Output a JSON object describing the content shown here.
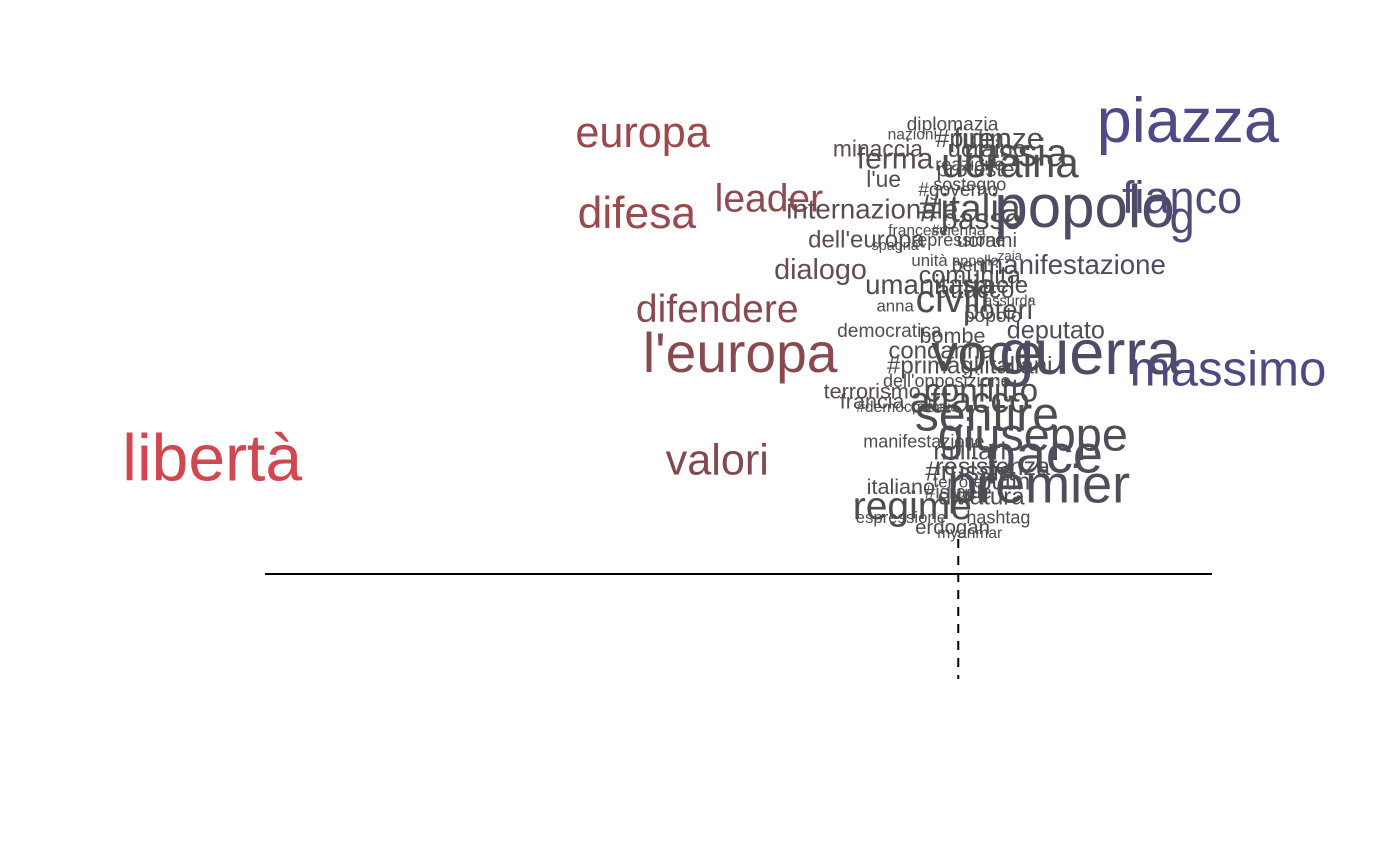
{
  "chart_data": {
    "type": "scatter",
    "title": "",
    "xlabel": "",
    "ylabel": "",
    "xlim": [
      -1.6,
      0.7
    ],
    "ylim": [
      -0.25,
      1.0
    ],
    "grid": false,
    "reference_lines": {
      "horizontal": 0,
      "vertical_dashed": 0
    },
    "color_scale": {
      "low": "#d1464f",
      "mid": "#4d4d4d",
      "high": "#4c4b85"
    },
    "words": [
      {
        "text": "libertà",
        "x": -1.3,
        "y": 0.22,
        "weight": 1.0,
        "c": -1.0
      },
      {
        "text": "europa",
        "x": -0.55,
        "y": 0.87,
        "weight": 0.62,
        "c": -0.6
      },
      {
        "text": "difesa",
        "x": -0.56,
        "y": 0.71,
        "weight": 0.64,
        "c": -0.6
      },
      {
        "text": "leader",
        "x": -0.33,
        "y": 0.74,
        "weight": 0.55,
        "c": -0.5
      },
      {
        "text": "difendere",
        "x": -0.42,
        "y": 0.52,
        "weight": 0.55,
        "c": -0.45
      },
      {
        "text": "l'europa",
        "x": -0.38,
        "y": 0.43,
        "weight": 0.82,
        "c": -0.45
      },
      {
        "text": "valori",
        "x": -0.42,
        "y": 0.22,
        "weight": 0.62,
        "c": -0.4
      },
      {
        "text": "dialogo",
        "x": -0.24,
        "y": 0.6,
        "weight": 0.38,
        "c": -0.2
      },
      {
        "text": "internazionale",
        "x": -0.15,
        "y": 0.72,
        "weight": 0.36,
        "c": -0.1
      },
      {
        "text": "dell'europa",
        "x": -0.16,
        "y": 0.66,
        "weight": 0.3,
        "c": -0.1
      },
      {
        "text": "minaccia",
        "x": -0.14,
        "y": 0.84,
        "weight": 0.28,
        "c": -0.1
      },
      {
        "text": "ferma",
        "x": -0.11,
        "y": 0.82,
        "weight": 0.4,
        "c": -0.1
      },
      {
        "text": "l'ue",
        "x": -0.13,
        "y": 0.78,
        "weight": 0.28,
        "c": -0.05
      },
      {
        "text": "diplomazia",
        "x": -0.01,
        "y": 0.89,
        "weight": 0.22,
        "c": 0.0
      },
      {
        "text": "#putin",
        "x": 0.02,
        "y": 0.86,
        "weight": 0.32,
        "c": 0.0
      },
      {
        "text": "firenze",
        "x": 0.07,
        "y": 0.86,
        "weight": 0.4,
        "c": 0.05
      },
      {
        "text": "ucraino",
        "x": 0.05,
        "y": 0.84,
        "weight": 0.3,
        "c": 0.0
      },
      {
        "text": "russia",
        "x": 0.1,
        "y": 0.83,
        "weight": 0.55,
        "c": 0.05
      },
      {
        "text": "ucraina",
        "x": 0.09,
        "y": 0.81,
        "weight": 0.6,
        "c": 0.05
      },
      {
        "text": "proteste",
        "x": 0.03,
        "y": 0.8,
        "weight": 0.26,
        "c": 0.0
      },
      {
        "text": "reazione",
        "x": 0.02,
        "y": 0.81,
        "weight": 0.2,
        "c": 0.0
      },
      {
        "text": "sostegno",
        "x": 0.02,
        "y": 0.77,
        "weight": 0.2,
        "c": 0.0
      },
      {
        "text": "#governo",
        "x": 0.0,
        "y": 0.76,
        "weight": 0.22,
        "c": 0.0
      },
      {
        "text": "#italia",
        "x": 0.02,
        "y": 0.72,
        "weight": 0.55,
        "c": 0.05
      },
      {
        "text": "passo",
        "x": 0.04,
        "y": 0.7,
        "weight": 0.4,
        "c": 0.05
      },
      {
        "text": "popolo",
        "x": 0.22,
        "y": 0.72,
        "weight": 0.9,
        "c": 0.4
      },
      {
        "text": "fianco",
        "x": 0.39,
        "y": 0.74,
        "weight": 0.65,
        "c": 0.8
      },
      {
        "text": "g",
        "x": 0.39,
        "y": 0.7,
        "weight": 0.65,
        "c": 0.8
      },
      {
        "text": "piazza",
        "x": 0.4,
        "y": 0.89,
        "weight": 0.95,
        "c": 1.0
      },
      {
        "text": "ucraini",
        "x": 0.05,
        "y": 0.66,
        "weight": 0.24,
        "c": 0.0
      },
      {
        "text": "repressione",
        "x": 0.0,
        "y": 0.66,
        "weight": 0.2,
        "c": 0.0
      },
      {
        "text": "manifestazione",
        "x": 0.2,
        "y": 0.61,
        "weight": 0.36,
        "c": 0.3
      },
      {
        "text": "beni",
        "x": 0.02,
        "y": 0.61,
        "weight": 0.22,
        "c": 0.0
      },
      {
        "text": "comunità",
        "x": 0.02,
        "y": 0.59,
        "weight": 0.32,
        "c": 0.0
      },
      {
        "text": "israele",
        "x": 0.06,
        "y": 0.57,
        "weight": 0.3,
        "c": 0.05
      },
      {
        "text": "umanitaria",
        "x": -0.05,
        "y": 0.57,
        "weight": 0.36,
        "c": 0.0
      },
      {
        "text": "civili",
        "x": -0.01,
        "y": 0.54,
        "weight": 0.55,
        "c": 0.0
      },
      {
        "text": "attacco",
        "x": 0.03,
        "y": 0.56,
        "weight": 0.3,
        "c": 0.0
      },
      {
        "text": "poteri",
        "x": 0.07,
        "y": 0.52,
        "weight": 0.36,
        "c": 0.05
      },
      {
        "text": "popolo",
        "x": 0.06,
        "y": 0.51,
        "weight": 0.22,
        "c": 0.0
      },
      {
        "text": "deputato",
        "x": 0.17,
        "y": 0.48,
        "weight": 0.32,
        "c": 0.2
      },
      {
        "text": "democratica",
        "x": -0.12,
        "y": 0.48,
        "weight": 0.22,
        "c": -0.05
      },
      {
        "text": "bombe",
        "x": -0.01,
        "y": 0.47,
        "weight": 0.26,
        "c": 0.0
      },
      {
        "text": "voce",
        "x": 0.05,
        "y": 0.43,
        "weight": 0.78,
        "c": 0.1
      },
      {
        "text": "guerra",
        "x": 0.23,
        "y": 0.43,
        "weight": 0.95,
        "c": 0.45
      },
      {
        "text": "massimo",
        "x": 0.47,
        "y": 0.4,
        "weight": 0.72,
        "c": 0.9
      },
      {
        "text": "condanna",
        "x": -0.03,
        "y": 0.44,
        "weight": 0.3,
        "c": 0.0
      },
      {
        "text": "#primagliitaliani",
        "x": 0.02,
        "y": 0.41,
        "weight": 0.3,
        "c": 0.0
      },
      {
        "text": "dell'opposizione",
        "x": -0.02,
        "y": 0.38,
        "weight": 0.2,
        "c": 0.0
      },
      {
        "text": "conflitto",
        "x": 0.04,
        "y": 0.36,
        "weight": 0.45,
        "c": 0.05
      },
      {
        "text": "attacco",
        "x": 0.02,
        "y": 0.34,
        "weight": 0.52,
        "c": 0.05
      },
      {
        "text": "terrorismo",
        "x": -0.15,
        "y": 0.36,
        "weight": 0.26,
        "c": -0.05
      },
      {
        "text": "francia",
        "x": -0.15,
        "y": 0.34,
        "weight": 0.26,
        "c": -0.05
      },
      {
        "text": "sentire",
        "x": 0.05,
        "y": 0.31,
        "weight": 0.7,
        "c": 0.05
      },
      {
        "text": "giuseppe",
        "x": 0.13,
        "y": 0.27,
        "weight": 0.68,
        "c": 0.2
      },
      {
        "text": "pace",
        "x": 0.15,
        "y": 0.23,
        "weight": 0.8,
        "c": 0.25
      },
      {
        "text": "manifestazione",
        "x": -0.06,
        "y": 0.26,
        "weight": 0.2,
        "c": 0.0
      },
      {
        "text": "militari",
        "x": 0.02,
        "y": 0.24,
        "weight": 0.32,
        "c": 0.0
      },
      {
        "text": "resistenza",
        "x": 0.06,
        "y": 0.21,
        "weight": 0.32,
        "c": 0.05
      },
      {
        "text": "#russia",
        "x": 0.02,
        "y": 0.2,
        "weight": 0.36,
        "c": 0.0
      },
      {
        "text": "premier",
        "x": 0.14,
        "y": 0.17,
        "weight": 0.8,
        "c": 0.25
      },
      {
        "text": "putin",
        "x": 0.08,
        "y": 0.18,
        "weight": 0.3,
        "c": 0.05
      },
      {
        "text": "terrore",
        "x": 0.0,
        "y": 0.18,
        "weight": 0.18,
        "c": 0.0
      },
      {
        "text": "italiano",
        "x": -0.1,
        "y": 0.17,
        "weight": 0.26,
        "c": 0.0
      },
      {
        "text": "#israele",
        "x": 0.0,
        "y": 0.16,
        "weight": 0.22,
        "c": 0.0
      },
      {
        "text": "dittatura",
        "x": 0.04,
        "y": 0.15,
        "weight": 0.3,
        "c": 0.0
      },
      {
        "text": "regime",
        "x": -0.08,
        "y": 0.13,
        "weight": 0.55,
        "c": 0.0
      },
      {
        "text": "espressione",
        "x": -0.1,
        "y": 0.11,
        "weight": 0.18,
        "c": 0.0
      },
      {
        "text": "hashtag",
        "x": 0.07,
        "y": 0.11,
        "weight": 0.2,
        "c": 0.0
      },
      {
        "text": "erdogan",
        "x": -0.01,
        "y": 0.09,
        "weight": 0.24,
        "c": 0.0
      },
      {
        "text": "myanmar",
        "x": 0.02,
        "y": 0.08,
        "weight": 0.16,
        "c": 0.0
      },
      {
        "text": "nazioni",
        "x": -0.08,
        "y": 0.87,
        "weight": 0.16,
        "c": 0.0
      },
      {
        "text": "francese",
        "x": -0.07,
        "y": 0.68,
        "weight": 0.16,
        "c": 0.0
      },
      {
        "text": "#vienna",
        "x": 0.0,
        "y": 0.68,
        "weight": 0.16,
        "c": 0.0
      },
      {
        "text": "unità",
        "x": -0.05,
        "y": 0.62,
        "weight": 0.18,
        "c": 0.0
      },
      {
        "text": "anna",
        "x": -0.11,
        "y": 0.53,
        "weight": 0.18,
        "c": 0.0
      },
      {
        "text": "assurda",
        "x": 0.09,
        "y": 0.54,
        "weight": 0.14,
        "c": 0.0
      },
      {
        "text": "polonia",
        "x": -0.04,
        "y": 0.33,
        "weight": 0.14,
        "c": 0.0
      },
      {
        "text": "#democrazia",
        "x": -0.1,
        "y": 0.33,
        "weight": 0.16,
        "c": 0.0
      },
      {
        "text": "spagna",
        "x": -0.11,
        "y": 0.65,
        "weight": 0.14,
        "c": 0.0
      },
      {
        "text": "zaia",
        "x": 0.09,
        "y": 0.63,
        "weight": 0.12,
        "c": 0.0
      },
      {
        "text": "appello",
        "x": 0.03,
        "y": 0.62,
        "weight": 0.14,
        "c": 0.0
      }
    ]
  }
}
